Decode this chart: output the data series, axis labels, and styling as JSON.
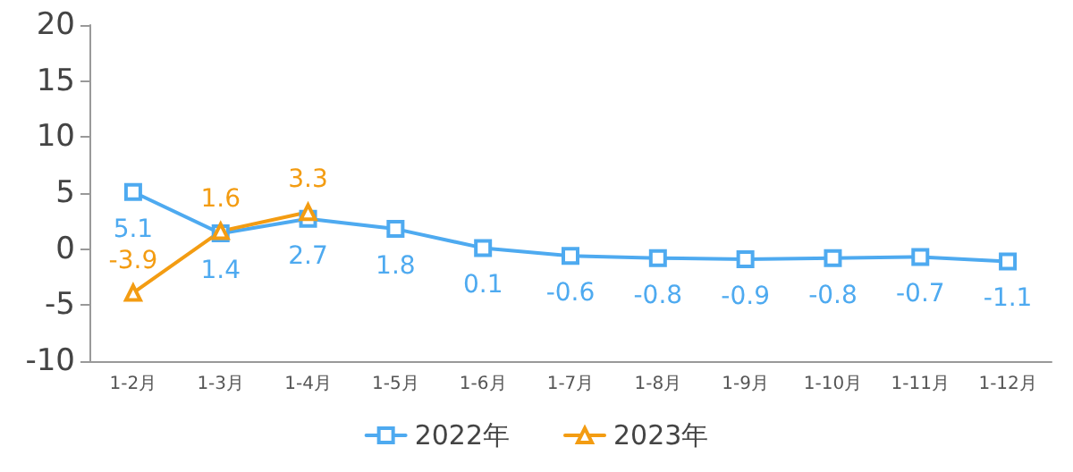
{
  "chart_data": {
    "type": "line",
    "categories": [
      "1-2月",
      "1-3月",
      "1-4月",
      "1-5月",
      "1-6月",
      "1-7月",
      "1-8月",
      "1-9月",
      "1-10月",
      "1-11月",
      "1-12月"
    ],
    "series": [
      {
        "name": "2022年",
        "color": "#4eaaf0",
        "marker": "square",
        "values": [
          5.1,
          1.4,
          2.7,
          1.8,
          0.1,
          -0.6,
          -0.8,
          -0.9,
          -0.8,
          -0.7,
          -1.1
        ]
      },
      {
        "name": "2023年",
        "color": "#f39c12",
        "marker": "triangle",
        "values": [
          -3.9,
          1.6,
          3.3,
          null,
          null,
          null,
          null,
          null,
          null,
          null,
          null
        ]
      }
    ],
    "ylim": [
      -10,
      20
    ],
    "yticks": [
      -10,
      -5,
      0,
      5,
      10,
      15,
      20
    ],
    "grid": false,
    "legend": "bottom",
    "data_labels": true
  }
}
